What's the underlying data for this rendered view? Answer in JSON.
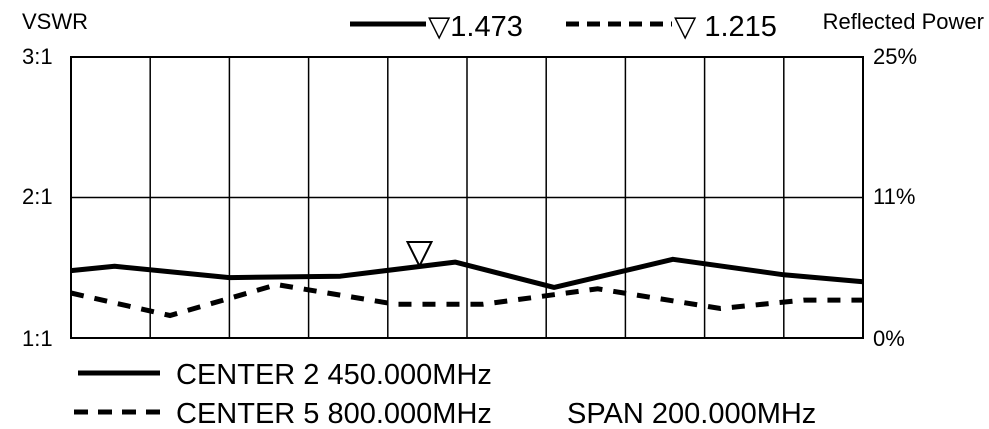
{
  "chart_data": {
    "type": "line",
    "left_axis_title": "VSWR",
    "right_axis_title": "Reflected Power",
    "left_ticks": [
      "3:1",
      "2:1",
      "1:1"
    ],
    "right_ticks": [
      "25%",
      "11%",
      "0%"
    ],
    "ylim": [
      1,
      3
    ],
    "xlim": [
      0,
      10
    ],
    "grid": true,
    "marker": {
      "x": 4.4,
      "symbol": "▽"
    },
    "legend_top": [
      {
        "style": "solid",
        "label": "▽1.473"
      },
      {
        "style": "dashed",
        "label": "▽ 1.215"
      }
    ],
    "legend_bottom": [
      {
        "style": "solid",
        "label": "CENTER 2 450.000MHz"
      },
      {
        "style": "dashed",
        "label": "CENTER 5 800.000MHz"
      }
    ],
    "span_label": "SPAN 200.000MHz",
    "series": [
      {
        "style": "solid",
        "x": [
          0,
          0.55,
          2,
          3.4,
          4.85,
          6.1,
          7.6,
          9,
          10
        ],
        "y": [
          1.48,
          1.51,
          1.43,
          1.44,
          1.54,
          1.36,
          1.56,
          1.45,
          1.4
        ]
      },
      {
        "style": "dashed",
        "x": [
          0,
          1.25,
          2.6,
          4.1,
          5.2,
          6.65,
          8.2,
          9.25,
          10
        ],
        "y": [
          1.32,
          1.16,
          1.38,
          1.24,
          1.24,
          1.35,
          1.21,
          1.27,
          1.27
        ]
      }
    ]
  }
}
